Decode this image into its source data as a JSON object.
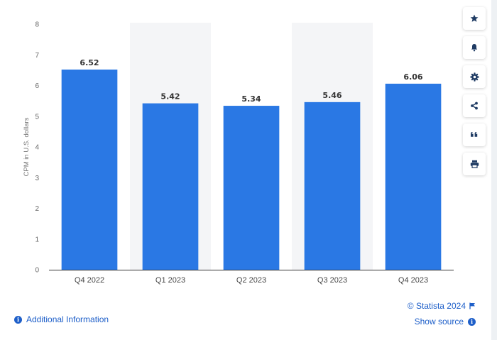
{
  "chart_data": {
    "type": "bar",
    "categories": [
      "Q4 2022",
      "Q1 2023",
      "Q2 2023",
      "Q3 2023",
      "Q4 2023"
    ],
    "values": [
      6.52,
      5.42,
      5.34,
      5.46,
      6.06
    ],
    "value_labels": [
      "6.52",
      "5.42",
      "5.34",
      "5.46",
      "6.06"
    ],
    "ylabel": "CPM in U.S. dollars",
    "ylim": [
      0,
      8
    ],
    "yticks": [
      "0",
      "1",
      "2",
      "3",
      "4",
      "5",
      "6",
      "7",
      "8"
    ],
    "grid": false,
    "bar_color": "#2a78e4",
    "band_color": "#f4f5f7"
  },
  "toolbar": {
    "items": [
      {
        "name": "favorite-icon"
      },
      {
        "name": "bell-icon"
      },
      {
        "name": "gear-icon"
      },
      {
        "name": "share-icon"
      },
      {
        "name": "quote-icon"
      },
      {
        "name": "print-icon"
      }
    ]
  },
  "footer": {
    "additional_info": "Additional Information",
    "copyright": "© Statista 2024",
    "show_source": "Show source"
  },
  "colors": {
    "link": "#1e5fc9",
    "background": "#eef1f4"
  }
}
